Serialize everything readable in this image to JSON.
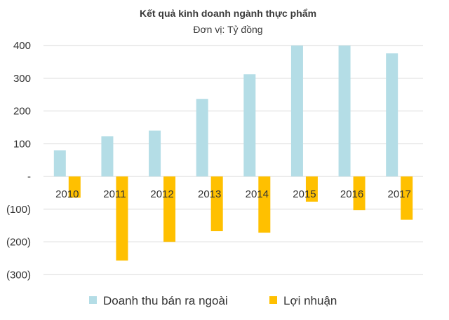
{
  "chart_data": {
    "type": "bar",
    "title": "Kết quả kinh doanh ngành thực phẩm",
    "subtitle": "Đơn vị: Tỷ đồng",
    "categories": [
      "2010",
      "2011",
      "2012",
      "2013",
      "2014",
      "2015",
      "2016",
      "2017"
    ],
    "series": [
      {
        "name": "Doanh thu bán ra ngoài",
        "color": "#b4dde6",
        "values": [
          80,
          123,
          140,
          237,
          312,
          400,
          400,
          376
        ]
      },
      {
        "name": "Lợi nhuận",
        "color": "#ffc000",
        "values": [
          -65,
          -257,
          -200,
          -167,
          -172,
          -77,
          -103,
          -132
        ]
      }
    ],
    "ylim": [
      -300,
      400
    ],
    "yticks": [
      400,
      300,
      200,
      100,
      0,
      -100,
      -200,
      -300
    ],
    "ytick_labels": [
      "400",
      "300",
      "200",
      "100",
      "-",
      "(100)",
      "(200)",
      "(300)"
    ],
    "grid": true,
    "legend": "bottom",
    "xlabel": "",
    "ylabel": ""
  }
}
